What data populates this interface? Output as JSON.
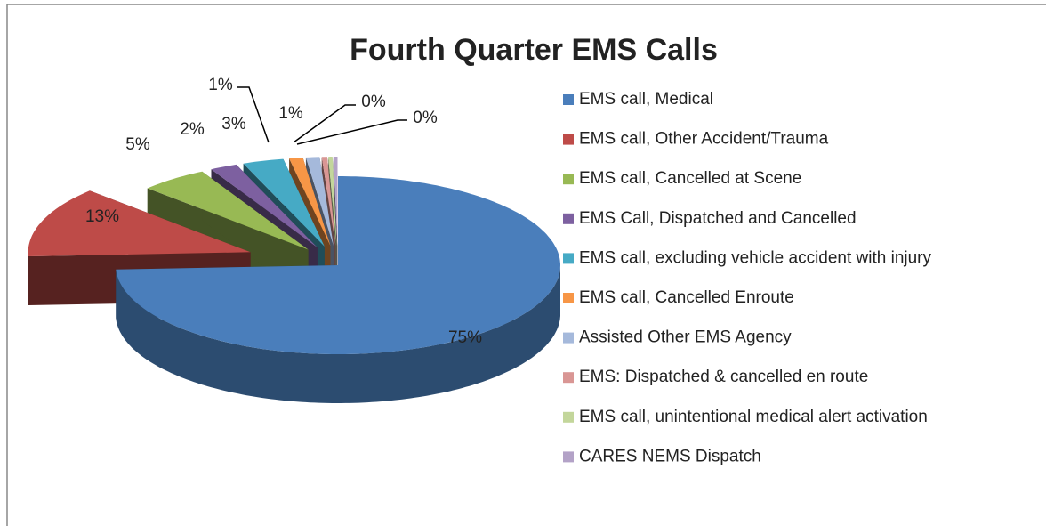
{
  "chart_data": {
    "type": "pie",
    "title": "Fourth Quarter EMS Calls",
    "categories": [
      "EMS call, Medical",
      "EMS call, Other Accident/Trauma",
      "EMS call, Cancelled at Scene",
      "EMS Call, Dispatched and Cancelled",
      "EMS call, excluding vehicle accident with injury",
      "EMS call, Cancelled Enroute",
      "Assisted Other EMS Agency",
      "EMS: Dispatched & cancelled en route",
      "EMS call, unintentional medical alert activation",
      "CARES NEMS Dispatch"
    ],
    "values": [
      75,
      13,
      5,
      2,
      3,
      1,
      1,
      0.4,
      0.3,
      0.3
    ],
    "value_labels": [
      "75%",
      "13%",
      "5%",
      "2%",
      "3%",
      "1%",
      "1%",
      "0%",
      "0%",
      null
    ],
    "colors": [
      "#4a7ebb",
      "#be4b48",
      "#98b954",
      "#7d60a0",
      "#46aac5",
      "#f79646",
      "#a5b9db",
      "#d99694",
      "#c3d69b",
      "#b3a2c7"
    ],
    "legend": "right"
  }
}
